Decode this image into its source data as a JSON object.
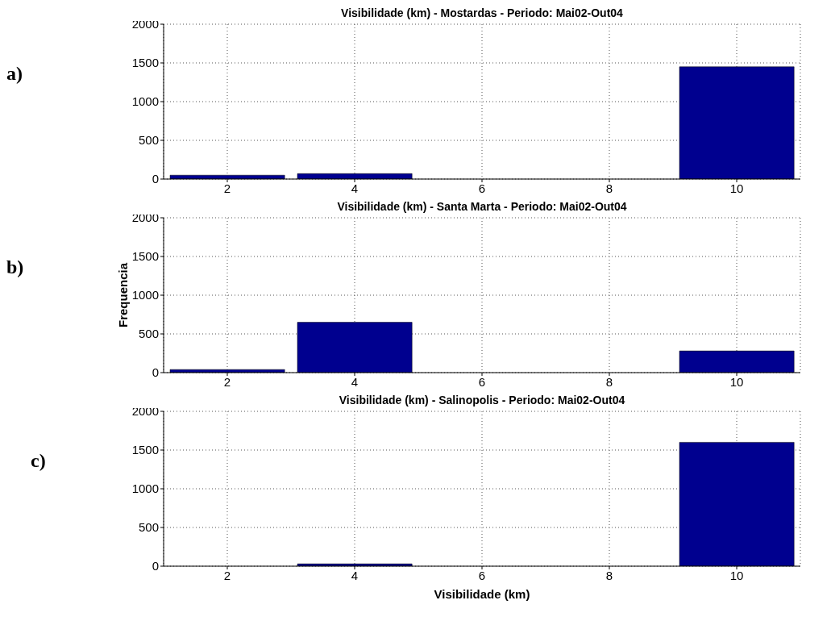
{
  "chart_data": [
    {
      "type": "histogram",
      "title": "Visibilidade (km) - Mostardas - Periodo: Mai02-Out04",
      "bins": [
        1,
        3,
        5,
        7,
        9,
        11
      ],
      "values": [
        50,
        70,
        0,
        0,
        1450
      ],
      "color": "#00008f",
      "xlim": [
        1,
        11
      ],
      "xticks": [
        2,
        4,
        6,
        8,
        10
      ],
      "ylim": [
        0,
        2000
      ],
      "yticks": [
        0,
        500,
        1000,
        1500,
        2000
      ],
      "grid": true,
      "annotations": [
        "a)"
      ]
    },
    {
      "type": "histogram",
      "title": "Visibilidade (km) - Santa Marta - Periodo: Mai02-Out04",
      "ylabel": "Frequencia",
      "bins": [
        1,
        3,
        5,
        7,
        9,
        11
      ],
      "values": [
        40,
        650,
        0,
        0,
        280
      ],
      "color": "#00008f",
      "xlim": [
        1,
        11
      ],
      "xticks": [
        2,
        4,
        6,
        8,
        10
      ],
      "ylim": [
        0,
        2000
      ],
      "yticks": [
        0,
        500,
        1000,
        1500,
        2000
      ],
      "grid": true,
      "annotations": [
        "b)"
      ]
    },
    {
      "type": "histogram",
      "title": "Visibilidade (km) - Salinopolis - Periodo: Mai02-Out04",
      "xlabel": "Visibilidade (km)",
      "bins": [
        1,
        3,
        5,
        7,
        9,
        11
      ],
      "values": [
        0,
        30,
        0,
        0,
        1600
      ],
      "color": "#00008f",
      "xlim": [
        1,
        11
      ],
      "xticks": [
        2,
        4,
        6,
        8,
        10
      ],
      "ylim": [
        0,
        2000
      ],
      "yticks": [
        0,
        500,
        1000,
        1500,
        2000
      ],
      "grid": true,
      "annotations": [
        "c)"
      ]
    }
  ]
}
